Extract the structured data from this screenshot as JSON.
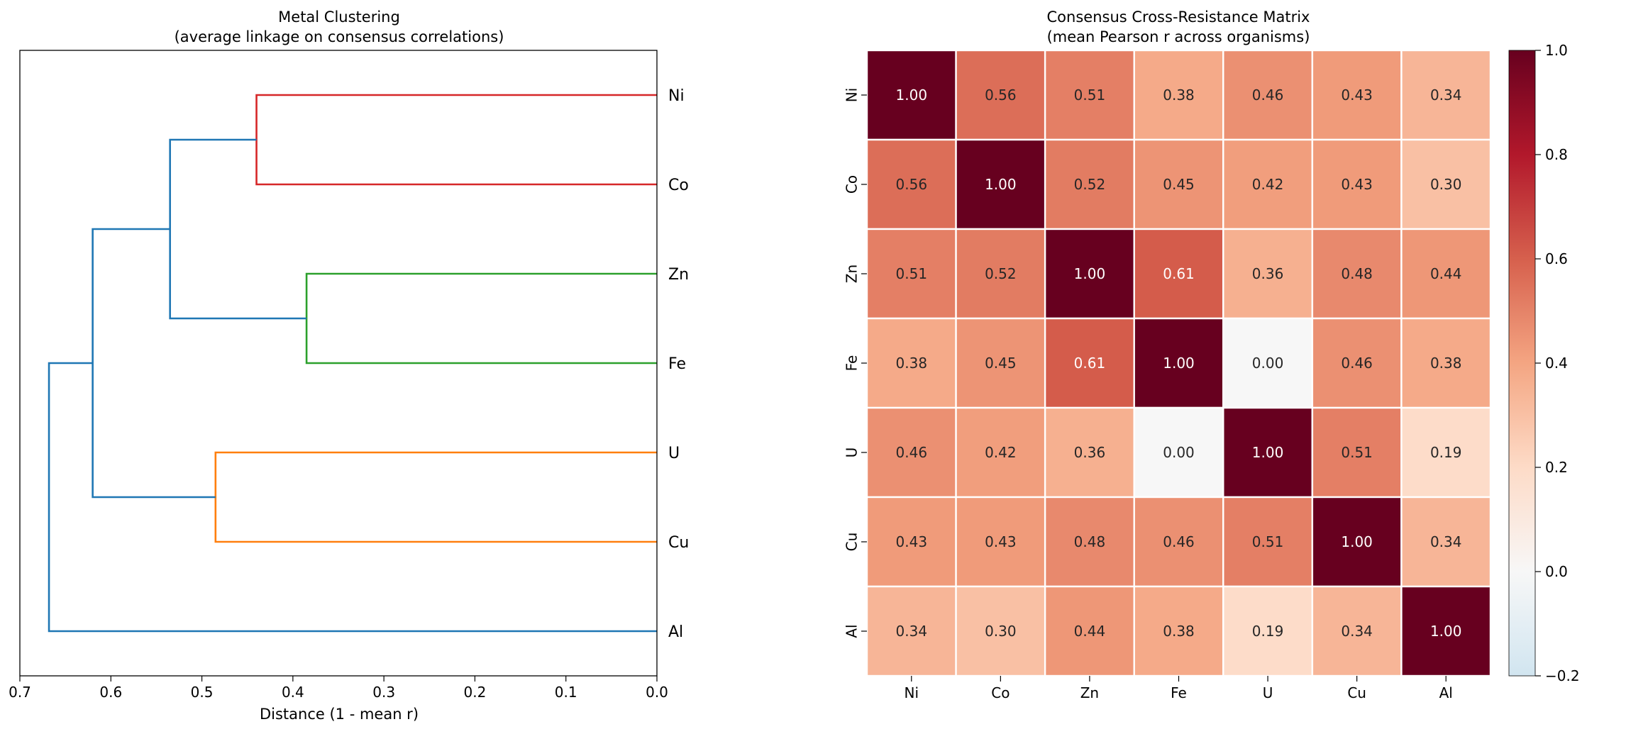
{
  "chart_data": [
    {
      "type": "dendrogram",
      "title": "Metal Clustering",
      "subtitle": "(average linkage on consensus correlations)",
      "xlabel": "Distance (1 - mean r)",
      "ylabel": "",
      "xlim": [
        0.7,
        0.0
      ],
      "xticks": [
        "0.7",
        "0.6",
        "0.5",
        "0.4",
        "0.3",
        "0.2",
        "0.1",
        "0.0"
      ],
      "leaves": [
        "Ni",
        "Co",
        "Zn",
        "Fe",
        "U",
        "Cu",
        "Al"
      ],
      "merges": [
        {
          "a": "Ni",
          "b": "Co",
          "distance": 0.44,
          "color": "#d62728"
        },
        {
          "a": "Zn",
          "b": "Fe",
          "distance": 0.385,
          "color": "#2ca02c"
        },
        {
          "a": "U",
          "b": "Cu",
          "distance": 0.485,
          "color": "#ff7f0e"
        },
        {
          "a": "Ni-Co",
          "b": "Zn-Fe",
          "distance": 0.535,
          "color": "#1f77b4"
        },
        {
          "a": "Ni-Co-Zn-Fe",
          "b": "U-Cu",
          "distance": 0.62,
          "color": "#1f77b4"
        },
        {
          "a": "Ni-Co-Zn-Fe-U-Cu",
          "b": "Al",
          "distance": 0.668,
          "color": "#1f77b4"
        }
      ]
    },
    {
      "type": "heatmap",
      "title": "Consensus Cross-Resistance Matrix",
      "subtitle": "(mean Pearson r across organisms)",
      "rows": [
        "Ni",
        "Co",
        "Zn",
        "Fe",
        "U",
        "Cu",
        "Al"
      ],
      "cols": [
        "Ni",
        "Co",
        "Zn",
        "Fe",
        "U",
        "Cu",
        "Al"
      ],
      "values": [
        [
          1.0,
          0.56,
          0.51,
          0.38,
          0.46,
          0.43,
          0.34
        ],
        [
          0.56,
          1.0,
          0.52,
          0.45,
          0.42,
          0.43,
          0.3
        ],
        [
          0.51,
          0.52,
          1.0,
          0.61,
          0.36,
          0.48,
          0.44
        ],
        [
          0.38,
          0.45,
          0.61,
          1.0,
          0.0,
          0.46,
          0.38
        ],
        [
          0.46,
          0.42,
          0.36,
          0.0,
          1.0,
          0.51,
          0.19
        ],
        [
          0.43,
          0.43,
          0.48,
          0.46,
          0.51,
          1.0,
          0.34
        ],
        [
          0.34,
          0.3,
          0.44,
          0.38,
          0.19,
          0.34,
          1.0
        ]
      ],
      "value_labels": [
        [
          "1.00",
          "0.56",
          "0.51",
          "0.38",
          "0.46",
          "0.43",
          "0.34"
        ],
        [
          "0.56",
          "1.00",
          "0.52",
          "0.45",
          "0.42",
          "0.43",
          "0.30"
        ],
        [
          "0.51",
          "0.52",
          "1.00",
          "0.61",
          "0.36",
          "0.48",
          "0.44"
        ],
        [
          "0.38",
          "0.45",
          "0.61",
          "1.00",
          "0.00",
          "0.46",
          "0.38"
        ],
        [
          "0.46",
          "0.42",
          "0.36",
          "0.00",
          "1.00",
          "0.51",
          "0.19"
        ],
        [
          "0.43",
          "0.43",
          "0.48",
          "0.46",
          "0.51",
          "1.00",
          "0.34"
        ],
        [
          "0.34",
          "0.30",
          "0.44",
          "0.38",
          "0.19",
          "0.34",
          "1.00"
        ]
      ],
      "colormap": "RdBu_r",
      "vmin": -0.2,
      "vmax": 1.0,
      "colorbar_ticks": [
        "1.0",
        "0.8",
        "0.6",
        "0.4",
        "0.2",
        "0.0",
        "−0.2"
      ]
    }
  ]
}
